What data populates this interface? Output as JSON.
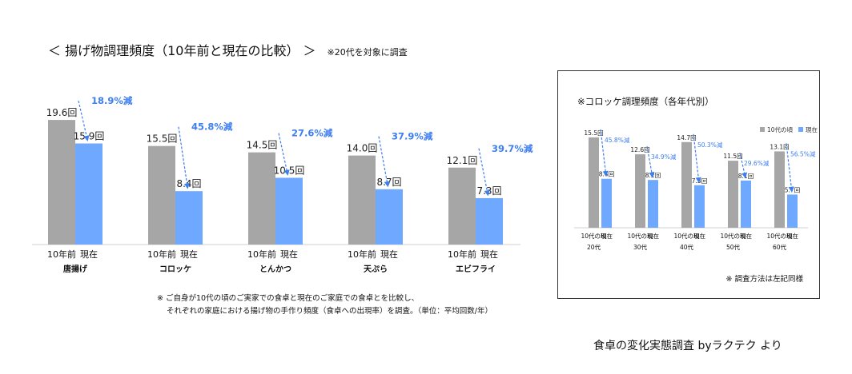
{
  "title": "＜ 揚げ物調理頻度（10年前と現在の比較） ＞",
  "title_note": "※20代を対象に調査",
  "footnote_lines": [
    "※ ご自身が10代の頃のご実家での食卓と現在のご家庭での食卓とを比較し、",
    "それぞれの家庭における揚げ物の手作り頻度（食卓への出現率）を調査。（単位：平均回数/年）"
  ],
  "source": "食卓の変化実態調査 byラクテク より",
  "colors": {
    "past": "#a6a6a6",
    "now": "#6fa8ff",
    "decrease": "#3d7ef0"
  },
  "chart_data": [
    {
      "type": "bar",
      "categories": [
        "唐揚げ",
        "コロッケ",
        "とんかつ",
        "天ぷら",
        "エビフライ"
      ],
      "bar_labels": [
        "10年前",
        "現在"
      ],
      "series": [
        {
          "name": "10年前",
          "values": [
            19.6,
            15.5,
            14.5,
            14.0,
            12.1
          ],
          "labels": [
            "19.6回",
            "15.5回",
            "14.5回",
            "14.0回",
            "12.1回"
          ]
        },
        {
          "name": "現在",
          "values": [
            15.9,
            8.4,
            10.5,
            8.7,
            7.3
          ],
          "labels": [
            "15.9回",
            "8.4回",
            "10.5回",
            "8.7回",
            "7.3回"
          ]
        }
      ],
      "decrease_labels": [
        "18.9%減",
        "45.8%減",
        "27.6%減",
        "37.9%減",
        "39.7%減"
      ],
      "ylim": [
        0,
        22
      ]
    },
    {
      "type": "bar",
      "title": "※コロッケ調理頻度（各年代別）",
      "categories": [
        "20代",
        "30代",
        "40代",
        "50代",
        "60代"
      ],
      "bar_labels": [
        "10代の頃",
        "現在"
      ],
      "series": [
        {
          "name": "10代の頃",
          "values": [
            15.5,
            12.6,
            14.7,
            11.5,
            13.1
          ],
          "labels": [
            "15.5回",
            "12.6回",
            "14.7回",
            "11.5回",
            "13.1回"
          ]
        },
        {
          "name": "現在",
          "values": [
            8.4,
            8.2,
            7.3,
            8.1,
            5.7
          ],
          "labels": [
            "8.4回",
            "8.2回",
            "7.3回",
            "8.1回",
            "5.7回"
          ]
        }
      ],
      "decrease_labels": [
        "45.8%減",
        "34.9%減",
        "50.3%減",
        "29.6%減",
        "56.5%減"
      ],
      "legend": [
        "10代の頃",
        "現在"
      ],
      "legend_position": "top-right",
      "ylim": [
        0,
        17
      ],
      "note": "※ 調査方法は左記同様"
    }
  ]
}
